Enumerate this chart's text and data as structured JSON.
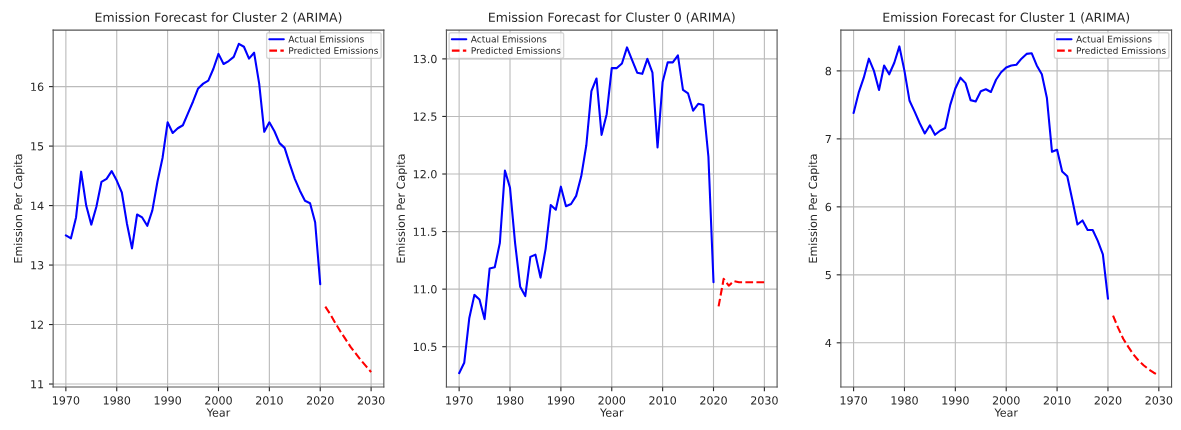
{
  "chart_data": [
    {
      "type": "line",
      "title": "Emission Forecast for Cluster 2 (ARIMA)",
      "xlabel": "Year",
      "ylabel": "Emission Per Capita",
      "xlim": [
        1967.5,
        2032.5
      ],
      "ylim": [
        10.95,
        16.95
      ],
      "xticks": [
        1970,
        1980,
        1990,
        2000,
        2010,
        2020,
        2030
      ],
      "yticks": [
        11,
        12,
        13,
        14,
        15,
        16
      ],
      "grid": true,
      "legend": "top right",
      "series": [
        {
          "name": "Actual Emissions",
          "color": "#0000ff",
          "line_style": "solid",
          "x": [
            1970,
            1971,
            1972,
            1973,
            1974,
            1975,
            1976,
            1977,
            1978,
            1979,
            1980,
            1981,
            1982,
            1983,
            1984,
            1985,
            1986,
            1987,
            1988,
            1989,
            1990,
            1991,
            1992,
            1993,
            1994,
            1995,
            1996,
            1997,
            1998,
            1999,
            2000,
            2001,
            2002,
            2003,
            2004,
            2005,
            2006,
            2007,
            2008,
            2009,
            2010,
            2011,
            2012,
            2013,
            2014,
            2015,
            2016,
            2017,
            2018,
            2019,
            2020
          ],
          "values": [
            13.5,
            13.45,
            13.8,
            14.57,
            14.0,
            13.68,
            13.98,
            14.4,
            14.45,
            14.58,
            14.42,
            14.22,
            13.7,
            13.28,
            13.85,
            13.8,
            13.66,
            13.92,
            14.4,
            14.8,
            15.4,
            15.22,
            15.3,
            15.35,
            15.55,
            15.75,
            15.97,
            16.05,
            16.1,
            16.3,
            16.55,
            16.38,
            16.43,
            16.5,
            16.72,
            16.67,
            16.47,
            16.57,
            16.05,
            15.24,
            15.4,
            15.25,
            15.05,
            14.97,
            14.7,
            14.45,
            14.25,
            14.08,
            14.04,
            13.72,
            12.68
          ]
        },
        {
          "name": "Predicted Emissions",
          "color": "#ff0000",
          "line_style": "dashed",
          "x": [
            2021,
            2022,
            2023,
            2024,
            2025,
            2026,
            2027,
            2028,
            2029,
            2030
          ],
          "values": [
            12.3,
            12.17,
            12.02,
            11.88,
            11.75,
            11.62,
            11.51,
            11.4,
            11.3,
            11.2
          ]
        }
      ]
    },
    {
      "type": "line",
      "title": "Emission Forecast for Cluster 0 (ARIMA)",
      "xlabel": "Year",
      "ylabel": "Emission Per Capita",
      "xlim": [
        1967.5,
        2032.5
      ],
      "ylim": [
        10.15,
        13.25
      ],
      "xticks": [
        1970,
        1980,
        1990,
        2000,
        2010,
        2020,
        2030
      ],
      "yticks": [
        {
          "value": 10.5,
          "label": "10.5"
        },
        {
          "value": 11,
          "label": "11.0"
        },
        {
          "value": 11.5,
          "label": "11.5"
        },
        {
          "value": 12,
          "label": "12.0"
        },
        {
          "value": 12.5,
          "label": "12.5"
        },
        {
          "value": 13,
          "label": "13.0"
        }
      ],
      "grid": true,
      "legend": "top left",
      "series": [
        {
          "name": "Actual Emissions",
          "color": "#0000ff",
          "line_style": "solid",
          "x": [
            1970,
            1971,
            1972,
            1973,
            1974,
            1975,
            1976,
            1977,
            1978,
            1979,
            1980,
            1981,
            1982,
            1983,
            1984,
            1985,
            1986,
            1987,
            1988,
            1989,
            1990,
            1991,
            1992,
            1993,
            1994,
            1995,
            1996,
            1997,
            1998,
            1999,
            2000,
            2001,
            2002,
            2003,
            2004,
            2005,
            2006,
            2007,
            2008,
            2009,
            2010,
            2011,
            2012,
            2013,
            2014,
            2015,
            2016,
            2017,
            2018,
            2019,
            2020
          ],
          "values": [
            10.27,
            10.36,
            10.75,
            10.95,
            10.91,
            10.74,
            11.18,
            11.19,
            11.4,
            12.03,
            11.88,
            11.4,
            11.02,
            10.94,
            11.28,
            11.3,
            11.1,
            11.35,
            11.73,
            11.69,
            11.89,
            11.72,
            11.74,
            11.81,
            11.98,
            12.25,
            12.72,
            12.83,
            12.34,
            12.52,
            12.92,
            12.92,
            12.96,
            13.1,
            12.99,
            12.88,
            12.87,
            13.0,
            12.88,
            12.23,
            12.8,
            12.97,
            12.97,
            13.03,
            12.73,
            12.7,
            12.55,
            12.61,
            12.6,
            12.15,
            11.06
          ]
        },
        {
          "name": "Predicted Emissions",
          "color": "#ff0000",
          "line_style": "dashed",
          "x": [
            2021,
            2022,
            2023,
            2024,
            2025,
            2026,
            2027,
            2028,
            2029,
            2030
          ],
          "values": [
            10.85,
            11.09,
            11.03,
            11.07,
            11.06,
            11.06,
            11.06,
            11.06,
            11.06,
            11.06
          ]
        }
      ]
    },
    {
      "type": "line",
      "title": "Emission Forecast for Cluster 1 (ARIMA)",
      "xlabel": "Year",
      "ylabel": "Emission Per Capita",
      "xlim": [
        1967.5,
        2032.5
      ],
      "ylim": [
        3.35,
        8.6
      ],
      "xticks": [
        1970,
        1980,
        1990,
        2000,
        2010,
        2020,
        2030
      ],
      "yticks": [
        4,
        5,
        6,
        7,
        8
      ],
      "grid": true,
      "legend": "top right",
      "series": [
        {
          "name": "Actual Emissions",
          "color": "#0000ff",
          "line_style": "solid",
          "x": [
            1970,
            1971,
            1972,
            1973,
            1974,
            1975,
            1976,
            1977,
            1978,
            1979,
            1980,
            1981,
            1982,
            1983,
            1984,
            1985,
            1986,
            1987,
            1988,
            1989,
            1990,
            1991,
            1992,
            1993,
            1994,
            1995,
            1996,
            1997,
            1998,
            1999,
            2000,
            2001,
            2002,
            2003,
            2004,
            2005,
            2006,
            2007,
            2008,
            2009,
            2010,
            2011,
            2012,
            2013,
            2014,
            2015,
            2016,
            2017,
            2018,
            2019,
            2020
          ],
          "values": [
            7.38,
            7.68,
            7.9,
            8.18,
            8.0,
            7.72,
            8.08,
            7.95,
            8.12,
            8.36,
            8.0,
            7.56,
            7.4,
            7.23,
            7.08,
            7.2,
            7.06,
            7.12,
            7.16,
            7.5,
            7.74,
            7.9,
            7.82,
            7.57,
            7.55,
            7.7,
            7.73,
            7.69,
            7.87,
            7.98,
            8.05,
            8.08,
            8.09,
            8.18,
            8.25,
            8.26,
            8.08,
            7.95,
            7.6,
            6.81,
            6.84,
            6.52,
            6.45,
            6.1,
            5.74,
            5.8,
            5.66,
            5.66,
            5.5,
            5.3,
            4.65
          ]
        },
        {
          "name": "Predicted Emissions",
          "color": "#ff0000",
          "line_style": "dashed",
          "x": [
            2021,
            2022,
            2023,
            2024,
            2025,
            2026,
            2027,
            2028,
            2029,
            2030
          ],
          "values": [
            4.4,
            4.22,
            4.06,
            3.94,
            3.83,
            3.74,
            3.67,
            3.61,
            3.56,
            3.52
          ]
        }
      ]
    }
  ]
}
